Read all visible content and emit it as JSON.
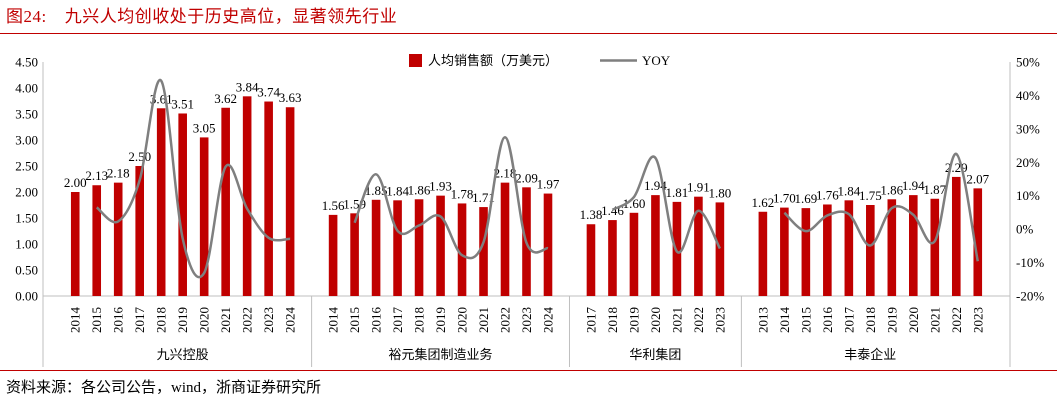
{
  "header": {
    "figure_label": "图24:",
    "title": "九兴人均创收处于历史高位，显著领先行业"
  },
  "footer": {
    "source": "资料来源：各公司公告，wind，浙商证券研究所"
  },
  "colors": {
    "bar": "#c00000",
    "line": "#7f7f7f",
    "accent": "#c00000",
    "axis": "#bfbfbf",
    "text": "#000000"
  },
  "chart_data": {
    "type": "bar",
    "title": "",
    "legend": {
      "position": "top-center",
      "bar_label": "人均销售额（万美元）",
      "line_label": "YOY"
    },
    "y_left": {
      "min": 0,
      "max": 4.5,
      "step": 0.5,
      "ticks": [
        "0.00",
        "0.50",
        "1.00",
        "1.50",
        "2.00",
        "2.50",
        "3.00",
        "3.50",
        "4.00",
        "4.50"
      ]
    },
    "y_right": {
      "min": -20,
      "max": 50,
      "step": 10,
      "ticks": [
        "-20%",
        "-10%",
        "0%",
        "10%",
        "20%",
        "30%",
        "40%",
        "50%"
      ]
    },
    "groups": [
      {
        "name": "九兴控股",
        "years": [
          "2014",
          "2015",
          "2016",
          "2017",
          "2018",
          "2019",
          "2020",
          "2021",
          "2022",
          "2023",
          "2024"
        ],
        "values": [
          2.0,
          2.13,
          2.18,
          2.5,
          3.61,
          3.51,
          3.05,
          3.62,
          3.84,
          3.74,
          3.63
        ],
        "labels": [
          "2.00",
          "2.13",
          "2.18",
          "2.50",
          "3.61",
          "3.51",
          "3.05",
          "3.62",
          "3.84",
          "3.74",
          "3.63"
        ],
        "yoy": [
          null,
          6.5,
          2.3,
          14.7,
          44.4,
          -2.8,
          -13.1,
          18.7,
          6.1,
          -2.6,
          -2.9
        ]
      },
      {
        "name": "裕元集团制造业务",
        "years": [
          "2014",
          "2015",
          "2016",
          "2017",
          "2018",
          "2019",
          "2020",
          "2021",
          "2022",
          "2023",
          "2024"
        ],
        "values": [
          1.56,
          1.59,
          1.85,
          1.84,
          1.86,
          1.93,
          1.78,
          1.71,
          2.18,
          2.09,
          1.97
        ],
        "labels": [
          "1.56",
          "1.59",
          "1.85",
          "1.84",
          "1.86",
          "1.93",
          "1.78",
          "1.71",
          "2.18",
          "2.09",
          "1.97"
        ],
        "yoy": [
          null,
          1.9,
          16.4,
          -0.5,
          1.1,
          3.8,
          -7.8,
          -3.9,
          27.5,
          -4.1,
          -5.7
        ]
      },
      {
        "name": "华利集团",
        "years": [
          "2017",
          "2018",
          "2019",
          "2020",
          "2021",
          "2022",
          "2023"
        ],
        "values": [
          1.38,
          1.46,
          1.6,
          1.94,
          1.81,
          1.91,
          1.8
        ],
        "labels": [
          "1.38",
          "1.46",
          "1.60",
          "1.94",
          "1.81",
          "1.91",
          "1.80"
        ],
        "yoy": [
          null,
          5.8,
          9.6,
          21.3,
          -6.7,
          5.5,
          -5.8
        ]
      },
      {
        "name": "丰泰企业",
        "years": [
          "2013",
          "2014",
          "2015",
          "2016",
          "2017",
          "2018",
          "2019",
          "2020",
          "2021",
          "2022",
          "2023"
        ],
        "values": [
          1.62,
          1.7,
          1.69,
          1.76,
          1.84,
          1.75,
          1.86,
          1.94,
          1.87,
          2.29,
          2.07
        ],
        "labels": [
          "1.62",
          "1.70",
          "1.69",
          "1.76",
          "1.84",
          "1.75",
          "1.86",
          "1.94",
          "1.87",
          "2.29",
          "2.07"
        ],
        "yoy": [
          null,
          4.9,
          -0.6,
          4.1,
          4.5,
          -4.9,
          6.3,
          4.3,
          -3.6,
          22.5,
          -9.6
        ]
      }
    ]
  }
}
